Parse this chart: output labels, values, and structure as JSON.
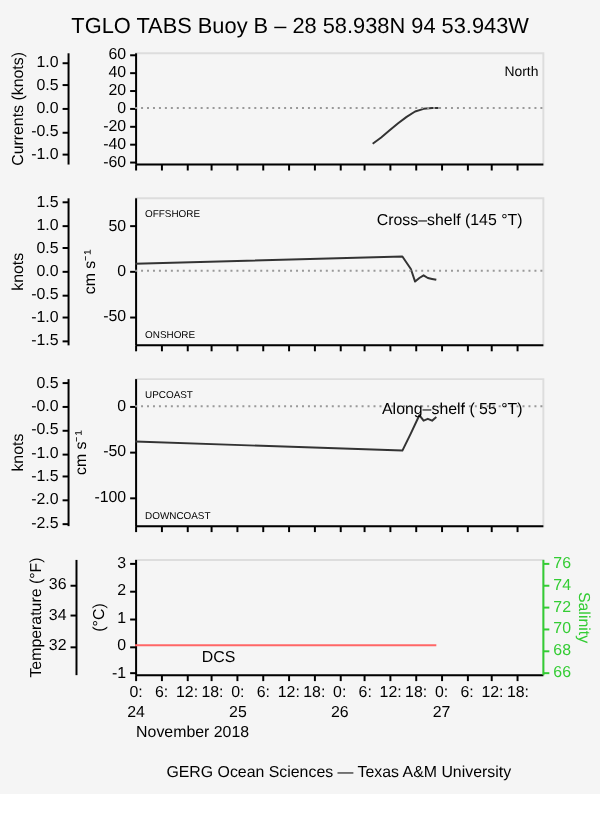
{
  "chart_data": [
    {
      "type": "line",
      "title": "TGLO TABS Buoy B – 28 58.938N  94 53.943W",
      "y2label": "Currents (knots)",
      "xlim": [
        "2018-11-24T00:00",
        "2018-11-28T00:00"
      ],
      "xticks": [
        "2018-11-24T00:00",
        "2018-11-24T06:00",
        "2018-11-24T12:00",
        "2018-11-24T18:00",
        "2018-11-25T00:00",
        "2018-11-25T06:00",
        "2018-11-25T12:00",
        "2018-11-25T18:00",
        "2018-11-26T00:00",
        "2018-11-26T06:00",
        "2018-11-26T12:00",
        "2018-11-26T18:00",
        "2018-11-27T00:00",
        "2018-11-27T06:00",
        "2018-11-27T12:00",
        "2018-11-27T18:00"
      ],
      "ylim": [
        -62,
        62
      ],
      "yticks": [
        -60,
        -40,
        -20,
        0,
        20,
        40,
        60
      ],
      "y2lim": [
        -1.2,
        1.2
      ],
      "y2ticks": [
        {
          "value": -1,
          "label": "-1.0"
        },
        -0.5,
        {
          "value": 0,
          "label": "0.0"
        },
        0.5,
        {
          "value": 1,
          "label": "1.0"
        }
      ],
      "tick_labels": "y",
      "series": [
        {
          "color": "#333333",
          "x": [
            "2018-11-26T08:00",
            "2018-11-26T10:00",
            "2018-11-26T12:00",
            "2018-11-26T14:00",
            "2018-11-26T16:00",
            "2018-11-26T18:00",
            "2018-11-26T20:00",
            "2018-11-26T22:00",
            "2018-11-26T23:30"
          ],
          "values": [
            -40,
            -33,
            -25,
            -17,
            -10,
            -4,
            -1,
            0,
            0
          ]
        }
      ],
      "ref_lines": [
        {
          "axis": "y",
          "value": 0,
          "line_style": "dotted",
          "color": "#999999"
        }
      ],
      "annotations": [
        "North"
      ]
    },
    {
      "type": "line",
      "ylabel": "cm s⁻¹",
      "y2label": "knots",
      "xlim": [
        "2018-11-24T00:00",
        "2018-11-28T00:00"
      ],
      "xticks": [
        "2018-11-24T00:00",
        "2018-11-24T06:00",
        "2018-11-24T12:00",
        "2018-11-24T18:00",
        "2018-11-25T00:00",
        "2018-11-25T06:00",
        "2018-11-25T12:00",
        "2018-11-25T18:00",
        "2018-11-26T00:00",
        "2018-11-26T06:00",
        "2018-11-26T12:00",
        "2018-11-26T18:00",
        "2018-11-27T00:00",
        "2018-11-27T06:00",
        "2018-11-27T12:00",
        "2018-11-27T18:00"
      ],
      "ylim": [
        -82,
        82
      ],
      "yticks": [
        -50,
        0,
        50
      ],
      "y2lim": [
        -1.6,
        1.6
      ],
      "y2ticks": [
        -1.5,
        {
          "value": -1,
          "label": "-1.0"
        },
        -0.5,
        {
          "value": 0,
          "label": "0.0"
        },
        0.5,
        {
          "value": 1,
          "label": "1.0"
        },
        1.5
      ],
      "tick_labels": "y",
      "series": [
        {
          "color": "#333333",
          "x": [
            "2018-11-24T00:00",
            "2018-11-26T15:00",
            "2018-11-26T17:00",
            "2018-11-26T18:00",
            "2018-11-26T19:00",
            "2018-11-26T20:00",
            "2018-11-26T21:00",
            "2018-11-26T22:00",
            "2018-11-26T23:00"
          ],
          "values": [
            8,
            16,
            2,
            -12,
            -8,
            -5,
            -8,
            -9,
            -10
          ]
        }
      ],
      "ref_lines": [
        {
          "axis": "y",
          "value": 0,
          "line_style": "dotted",
          "color": "#999999"
        }
      ],
      "annotations": [
        "OFFSHORE",
        "ONSHORE",
        "Cross–shelf (145 °T)"
      ]
    },
    {
      "type": "line",
      "ylabel": "cm s⁻¹",
      "y2label": "knots",
      "xlim": [
        "2018-11-24T00:00",
        "2018-11-28T00:00"
      ],
      "xticks": [
        "2018-11-24T00:00",
        "2018-11-24T06:00",
        "2018-11-24T12:00",
        "2018-11-24T18:00",
        "2018-11-25T00:00",
        "2018-11-25T06:00",
        "2018-11-25T12:00",
        "2018-11-25T18:00",
        "2018-11-26T00:00",
        "2018-11-26T06:00",
        "2018-11-26T12:00",
        "2018-11-26T18:00",
        "2018-11-27T00:00",
        "2018-11-27T06:00",
        "2018-11-27T12:00",
        "2018-11-27T18:00"
      ],
      "ylim": [
        -131.2,
        30.9
      ],
      "yticks": [
        -100,
        -50,
        0
      ],
      "y2lim": [
        -2.55,
        0.6
      ],
      "y2ticks": [
        -2.5,
        {
          "value": -2,
          "label": "-2.0"
        },
        -1.5,
        {
          "value": -1,
          "label": "-1.0"
        },
        -0.5,
        {
          "value": 0,
          "label": "-0.0"
        },
        0.5
      ],
      "tick_labels": "y",
      "series": [
        {
          "color": "#333333",
          "x": [
            "2018-11-24T00:00",
            "2018-11-26T15:00",
            "2018-11-26T17:00",
            "2018-11-26T19:00",
            "2018-11-26T20:00",
            "2018-11-26T21:00",
            "2018-11-26T22:00",
            "2018-11-26T23:00"
          ],
          "values": [
            -39,
            -49,
            -30,
            -10,
            -16,
            -14,
            -16,
            -12
          ]
        }
      ],
      "ref_lines": [
        {
          "axis": "y",
          "value": 0,
          "line_style": "dotted",
          "color": "#999999"
        }
      ],
      "annotations": [
        "UPCOAST",
        "DOWNCOAST",
        "Along–shelf ( 55 °T)"
      ]
    },
    {
      "type": "line",
      "ylabel": "(°C)",
      "y2label": "Salinity",
      "y3label": "Temperature (°F)",
      "xlabel": "November 2018",
      "xlim": [
        "2018-11-24T00:00",
        "2018-11-28T00:00"
      ],
      "xticks": [
        {
          "value": "2018-11-24T00:00",
          "label": "0:\n24"
        },
        {
          "value": "2018-11-24T06:00",
          "label": "6:"
        },
        {
          "value": "2018-11-24T12:00",
          "label": "12:"
        },
        {
          "value": "2018-11-24T18:00",
          "label": "18:"
        },
        {
          "value": "2018-11-25T00:00",
          "label": "0:\n25"
        },
        {
          "value": "2018-11-25T06:00",
          "label": "6:"
        },
        {
          "value": "2018-11-25T12:00",
          "label": "12:"
        },
        {
          "value": "2018-11-25T18:00",
          "label": "18:"
        },
        {
          "value": "2018-11-26T00:00",
          "label": "0:\n26"
        },
        {
          "value": "2018-11-26T06:00",
          "label": "6:"
        },
        {
          "value": "2018-11-26T12:00",
          "label": "12:"
        },
        {
          "value": "2018-11-26T18:00",
          "label": "18:"
        },
        {
          "value": "2018-11-27T00:00",
          "label": "0:\n27"
        },
        {
          "value": "2018-11-27T06:00",
          "label": "6:"
        },
        {
          "value": "2018-11-27T12:00",
          "label": "12:"
        },
        {
          "value": "2018-11-27T18:00",
          "label": "18:"
        }
      ],
      "ylim": [
        -1.05,
        3.15
      ],
      "yticks": [
        -1,
        0,
        1,
        2,
        3
      ],
      "y2lim": [
        65.8,
        76.4
      ],
      "y2ticks": [
        66,
        68,
        70,
        72,
        74,
        76
      ],
      "y3lim": [
        30.11,
        37.67
      ],
      "y3ticks": [
        32,
        34,
        36
      ],
      "series": [
        {
          "color": "#ff6666",
          "x": [
            "2018-11-24T00:00",
            "2018-11-26T23:00"
          ],
          "values": [
            0,
            0
          ]
        }
      ],
      "annotations": [
        "DCS",
        "GERG Ocean Sciences — Texas A&M University"
      ]
    }
  ]
}
